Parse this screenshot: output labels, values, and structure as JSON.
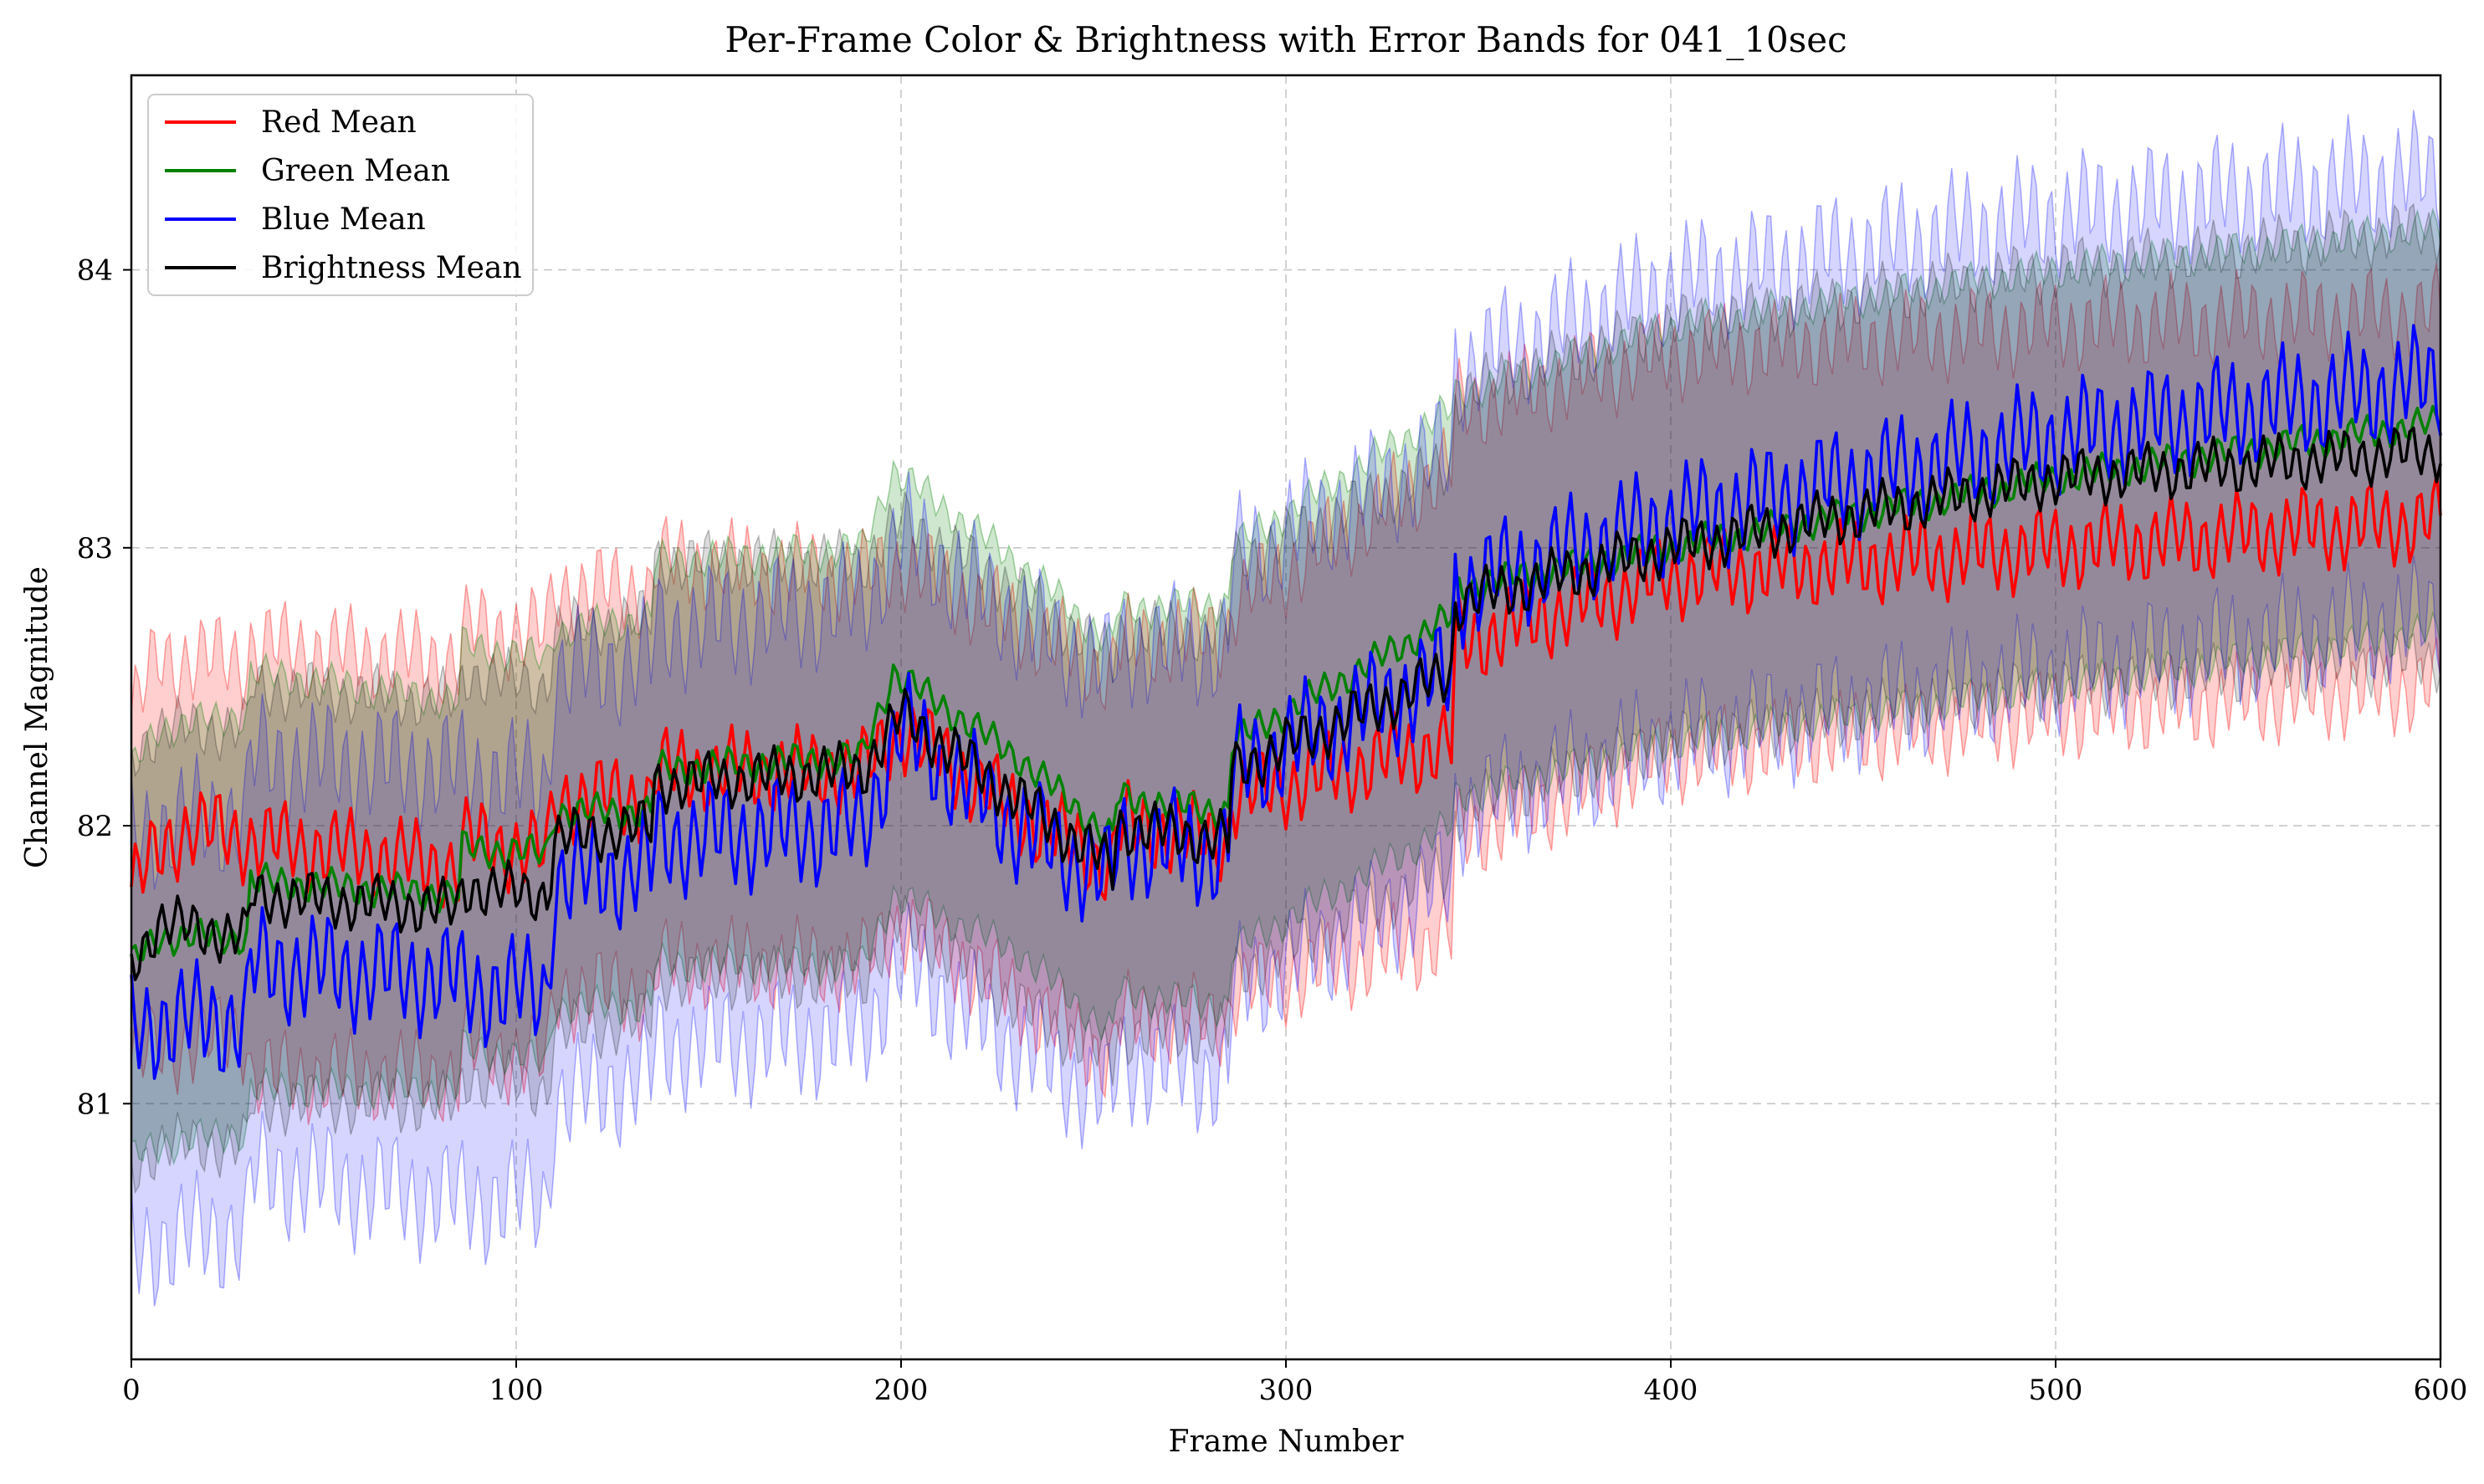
{
  "chart_data": {
    "type": "line",
    "title": "Per-Frame Color & Brightness with Error Bands for 041_10sec",
    "xlabel": "Frame Number",
    "ylabel": "Channel Magnitude",
    "xlim": [
      0,
      600
    ],
    "ylim": [
      80.08,
      84.7
    ],
    "xticks": [
      0,
      100,
      200,
      300,
      400,
      500,
      600
    ],
    "yticks": [
      81,
      82,
      83,
      84
    ],
    "grid": true,
    "legend_position": "top-left",
    "series": [
      {
        "name": "Red Mean",
        "color": "#ff0000",
        "band_alpha": 0.35,
        "mean_points": [
          [
            0,
            81.78
          ],
          [
            7,
            81.9
          ],
          [
            15,
            82.0
          ],
          [
            30,
            81.95
          ],
          [
            31,
            81.95
          ],
          [
            60,
            81.9
          ],
          [
            85,
            81.85
          ],
          [
            86,
            81.95
          ],
          [
            108,
            81.9
          ],
          [
            110,
            82.1
          ],
          [
            135,
            82.1
          ],
          [
            136,
            82.2
          ],
          [
            190,
            82.2
          ],
          [
            200,
            82.35
          ],
          [
            230,
            82.05
          ],
          [
            255,
            81.85
          ],
          [
            256,
            82.0
          ],
          [
            285,
            81.95
          ],
          [
            286,
            82.1
          ],
          [
            343,
            82.3
          ],
          [
            344,
            82.65
          ],
          [
            400,
            82.9
          ],
          [
            500,
            83.0
          ],
          [
            600,
            83.1
          ]
        ],
        "upper_points": [
          [
            0,
            82.4
          ],
          [
            7,
            82.6
          ],
          [
            30,
            82.6
          ],
          [
            31,
            82.65
          ],
          [
            85,
            82.6
          ],
          [
            86,
            82.7
          ],
          [
            108,
            82.7
          ],
          [
            110,
            82.85
          ],
          [
            135,
            82.85
          ],
          [
            136,
            82.95
          ],
          [
            190,
            82.9
          ],
          [
            200,
            82.95
          ],
          [
            255,
            82.55
          ],
          [
            256,
            82.65
          ],
          [
            285,
            82.7
          ],
          [
            286,
            82.8
          ],
          [
            343,
            83.3
          ],
          [
            344,
            83.5
          ],
          [
            400,
            83.7
          ],
          [
            500,
            83.8
          ],
          [
            600,
            83.85
          ]
        ],
        "lower_points": [
          [
            0,
            81.15
          ],
          [
            7,
            81.2
          ],
          [
            30,
            81.25
          ],
          [
            31,
            81.1
          ],
          [
            85,
            81.1
          ],
          [
            86,
            81.2
          ],
          [
            108,
            81.15
          ],
          [
            110,
            81.4
          ],
          [
            135,
            81.4
          ],
          [
            136,
            81.5
          ],
          [
            190,
            81.5
          ],
          [
            200,
            81.65
          ],
          [
            255,
            81.15
          ],
          [
            256,
            81.3
          ],
          [
            285,
            81.3
          ],
          [
            286,
            81.4
          ],
          [
            343,
            81.6
          ],
          [
            344,
            81.95
          ],
          [
            400,
            82.25
          ],
          [
            500,
            82.4
          ],
          [
            600,
            82.5
          ]
        ],
        "oscillation": 0.12
      },
      {
        "name": "Green Mean",
        "color": "#008000",
        "band_alpha": 0.35,
        "mean_points": [
          [
            0,
            81.5
          ],
          [
            7,
            81.6
          ],
          [
            30,
            81.6
          ],
          [
            31,
            81.8
          ],
          [
            85,
            81.75
          ],
          [
            86,
            81.92
          ],
          [
            108,
            81.9
          ],
          [
            110,
            82.05
          ],
          [
            135,
            82.05
          ],
          [
            136,
            82.2
          ],
          [
            190,
            82.25
          ],
          [
            198,
            82.55
          ],
          [
            230,
            82.25
          ],
          [
            255,
            81.95
          ],
          [
            256,
            82.1
          ],
          [
            285,
            82.05
          ],
          [
            286,
            82.3
          ],
          [
            343,
            82.75
          ],
          [
            344,
            82.85
          ],
          [
            400,
            83.0
          ],
          [
            500,
            83.25
          ],
          [
            600,
            83.45
          ]
        ],
        "upper_points": [
          [
            0,
            82.2
          ],
          [
            7,
            82.35
          ],
          [
            30,
            82.4
          ],
          [
            31,
            82.55
          ],
          [
            85,
            82.45
          ],
          [
            86,
            82.65
          ],
          [
            108,
            82.6
          ],
          [
            110,
            82.7
          ],
          [
            135,
            82.75
          ],
          [
            136,
            82.95
          ],
          [
            190,
            83.0
          ],
          [
            198,
            83.28
          ],
          [
            230,
            82.95
          ],
          [
            255,
            82.65
          ],
          [
            256,
            82.78
          ],
          [
            285,
            82.8
          ],
          [
            286,
            83.0
          ],
          [
            343,
            83.5
          ],
          [
            344,
            83.55
          ],
          [
            400,
            83.8
          ],
          [
            500,
            84.0
          ],
          [
            600,
            84.15
          ]
        ],
        "lower_points": [
          [
            0,
            80.8
          ],
          [
            7,
            80.85
          ],
          [
            30,
            80.9
          ],
          [
            31,
            81.05
          ],
          [
            85,
            81.05
          ],
          [
            86,
            81.2
          ],
          [
            108,
            81.15
          ],
          [
            110,
            81.35
          ],
          [
            135,
            81.35
          ],
          [
            136,
            81.5
          ],
          [
            190,
            81.5
          ],
          [
            198,
            81.75
          ],
          [
            230,
            81.55
          ],
          [
            255,
            81.25
          ],
          [
            256,
            81.4
          ],
          [
            285,
            81.35
          ],
          [
            286,
            81.55
          ],
          [
            343,
            82.0
          ],
          [
            344,
            82.1
          ],
          [
            400,
            82.3
          ],
          [
            500,
            82.5
          ],
          [
            600,
            82.7
          ]
        ],
        "oscillation": 0.05
      },
      {
        "name": "Blue Mean",
        "color": "#0000ff",
        "band_alpha": 0.3,
        "mean_points": [
          [
            0,
            81.25
          ],
          [
            7,
            81.3
          ],
          [
            30,
            81.3
          ],
          [
            31,
            81.5
          ],
          [
            85,
            81.45
          ],
          [
            86,
            81.42
          ],
          [
            108,
            81.4
          ],
          [
            110,
            81.8
          ],
          [
            135,
            81.85
          ],
          [
            136,
            81.95
          ],
          [
            190,
            82.0
          ],
          [
            200,
            82.35
          ],
          [
            230,
            82.0
          ],
          [
            255,
            81.8
          ],
          [
            256,
            81.95
          ],
          [
            285,
            81.9
          ],
          [
            286,
            82.2
          ],
          [
            343,
            82.55
          ],
          [
            344,
            82.85
          ],
          [
            400,
            83.1
          ],
          [
            500,
            83.4
          ],
          [
            600,
            83.6
          ]
        ],
        "upper_points": [
          [
            0,
            81.95
          ],
          [
            7,
            82.0
          ],
          [
            30,
            82.05
          ],
          [
            31,
            82.25
          ],
          [
            85,
            82.2
          ],
          [
            86,
            82.2
          ],
          [
            108,
            82.15
          ],
          [
            110,
            82.55
          ],
          [
            135,
            82.6
          ],
          [
            136,
            82.7
          ],
          [
            190,
            82.8
          ],
          [
            200,
            83.05
          ],
          [
            230,
            82.75
          ],
          [
            255,
            82.55
          ],
          [
            256,
            82.65
          ],
          [
            285,
            82.65
          ],
          [
            286,
            82.95
          ],
          [
            343,
            83.35
          ],
          [
            344,
            83.65
          ],
          [
            400,
            83.95
          ],
          [
            500,
            84.2
          ],
          [
            600,
            84.35
          ]
        ],
        "lower_points": [
          [
            0,
            80.45
          ],
          [
            7,
            80.5
          ],
          [
            30,
            80.55
          ],
          [
            31,
            80.75
          ],
          [
            85,
            80.65
          ],
          [
            86,
            80.65
          ],
          [
            108,
            80.65
          ],
          [
            110,
            81.0
          ],
          [
            135,
            81.1
          ],
          [
            136,
            81.2
          ],
          [
            190,
            81.25
          ],
          [
            200,
            81.5
          ],
          [
            230,
            81.2
          ],
          [
            255,
            81.0
          ],
          [
            256,
            81.15
          ],
          [
            285,
            81.1
          ],
          [
            286,
            81.4
          ],
          [
            343,
            81.8
          ],
          [
            344,
            82.05
          ],
          [
            400,
            82.3
          ],
          [
            500,
            82.55
          ],
          [
            600,
            82.75
          ]
        ],
        "oscillation": 0.16
      },
      {
        "name": "Brightness Mean",
        "color": "#000000",
        "band_alpha": 0.25,
        "mean_points": [
          [
            0,
            81.5
          ],
          [
            7,
            81.65
          ],
          [
            30,
            81.6
          ],
          [
            31,
            81.75
          ],
          [
            85,
            81.7
          ],
          [
            86,
            81.78
          ],
          [
            108,
            81.75
          ],
          [
            110,
            81.95
          ],
          [
            135,
            82.0
          ],
          [
            136,
            82.15
          ],
          [
            190,
            82.2
          ],
          [
            200,
            82.4
          ],
          [
            230,
            82.1
          ],
          [
            255,
            81.85
          ],
          [
            256,
            82.0
          ],
          [
            285,
            81.95
          ],
          [
            286,
            82.2
          ],
          [
            343,
            82.55
          ],
          [
            344,
            82.8
          ],
          [
            400,
            83.0
          ],
          [
            500,
            83.25
          ],
          [
            600,
            83.35
          ]
        ],
        "upper_points": [
          [
            0,
            82.25
          ],
          [
            7,
            82.35
          ],
          [
            30,
            82.35
          ],
          [
            31,
            82.5
          ],
          [
            85,
            82.45
          ],
          [
            86,
            82.55
          ],
          [
            108,
            82.5
          ],
          [
            110,
            82.7
          ],
          [
            135,
            82.75
          ],
          [
            136,
            82.95
          ],
          [
            190,
            82.95
          ],
          [
            200,
            83.1
          ],
          [
            230,
            82.85
          ],
          [
            255,
            82.6
          ],
          [
            256,
            82.7
          ],
          [
            285,
            82.7
          ],
          [
            286,
            82.95
          ],
          [
            343,
            83.3
          ],
          [
            344,
            83.55
          ],
          [
            400,
            83.8
          ],
          [
            500,
            84.0
          ],
          [
            600,
            84.15
          ]
        ],
        "lower_points": [
          [
            0,
            80.75
          ],
          [
            7,
            80.85
          ],
          [
            30,
            80.85
          ],
          [
            31,
            81.0
          ],
          [
            85,
            81.0
          ],
          [
            86,
            81.1
          ],
          [
            108,
            81.05
          ],
          [
            110,
            81.25
          ],
          [
            135,
            81.3
          ],
          [
            136,
            81.45
          ],
          [
            190,
            81.45
          ],
          [
            200,
            81.65
          ],
          [
            230,
            81.35
          ],
          [
            255,
            81.15
          ],
          [
            256,
            81.25
          ],
          [
            285,
            81.25
          ],
          [
            286,
            81.45
          ],
          [
            343,
            81.85
          ],
          [
            344,
            82.05
          ],
          [
            400,
            82.3
          ],
          [
            500,
            82.5
          ],
          [
            600,
            82.6
          ]
        ],
        "oscillation": 0.08
      }
    ]
  }
}
